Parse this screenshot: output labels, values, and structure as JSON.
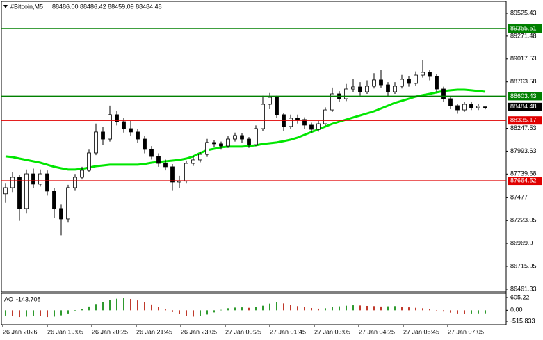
{
  "chart_data": {
    "type": "candlestick",
    "symbol": "#Bitcoin,M5",
    "header_ohlc": "88486.00 88486.42 88459.09 88484.48",
    "up_color": "#ffffff",
    "down_color": "#000000",
    "open": [
      87520,
      87588,
      87704,
      87357,
      87742,
      87627,
      87742,
      87550,
      87357,
      87241,
      87588,
      87704,
      87781,
      87974,
      88206,
      88128,
      88399,
      88321,
      88244,
      88206,
      88128,
      88013,
      87935,
      87858,
      87820,
      87650,
      87660,
      87858,
      87897,
      87958,
      88090,
      88075,
      88051,
      88128,
      88167,
      88128,
      88066,
      88244,
      88514,
      88591,
      88399,
      88268,
      88360,
      88345,
      88283,
      88236,
      88298,
      88452,
      88630,
      88576,
      88684,
      88707,
      88653,
      88715,
      88785,
      88730,
      88653,
      88715,
      88792,
      88746,
      88838,
      88869,
      88823,
      88684,
      88576,
      88499,
      88452,
      88514,
      88476,
      88486
    ],
    "high": [
      87640,
      87760,
      87730,
      87790,
      87800,
      87790,
      87780,
      87580,
      87400,
      87620,
      87740,
      87820,
      88010,
      88300,
      88260,
      88500,
      88440,
      88360,
      88330,
      88240,
      88160,
      88050,
      87970,
      87900,
      87850,
      87720,
      87890,
      87940,
      87990,
      88130,
      88120,
      88100,
      88160,
      88200,
      88190,
      88150,
      88280,
      88610,
      88640,
      88610,
      88420,
      88400,
      88400,
      88370,
      88310,
      88330,
      88480,
      88700,
      88660,
      88740,
      88800,
      88760,
      88780,
      88860,
      88900,
      88760,
      88760,
      88840,
      88830,
      88880,
      89000,
      88900,
      88850,
      88710,
      88600,
      88520,
      88540,
      88540,
      88520,
      88486.42
    ],
    "low": [
      87420,
      87540,
      87220,
      87300,
      87580,
      87600,
      87500,
      87250,
      87060,
      87200,
      87560,
      87680,
      87760,
      87950,
      88060,
      88100,
      88280,
      88200,
      88160,
      88090,
      87970,
      87900,
      87820,
      87780,
      87560,
      87580,
      87640,
      87830,
      87870,
      87930,
      88040,
      88010,
      88030,
      88100,
      88090,
      88030,
      88050,
      88220,
      88460,
      88360,
      88220,
      88240,
      88300,
      88240,
      88200,
      88210,
      88280,
      88430,
      88540,
      88550,
      88650,
      88610,
      88630,
      88690,
      88700,
      88600,
      88630,
      88690,
      88710,
      88720,
      88810,
      88780,
      88650,
      88540,
      88460,
      88410,
      88430,
      88450,
      88450,
      88459.09
    ],
    "close": [
      87588,
      87704,
      87357,
      87742,
      87627,
      87742,
      87550,
      87357,
      87241,
      87588,
      87704,
      87781,
      87974,
      88206,
      88128,
      88399,
      88321,
      88244,
      88206,
      88128,
      88013,
      87935,
      87858,
      87820,
      87650,
      87660,
      87858,
      87897,
      87958,
      88090,
      88075,
      88051,
      88128,
      88167,
      88128,
      88066,
      88244,
      88514,
      88591,
      88399,
      88268,
      88360,
      88345,
      88283,
      88236,
      88298,
      88452,
      88630,
      88576,
      88684,
      88707,
      88653,
      88715,
      88785,
      88730,
      88653,
      88715,
      88792,
      88746,
      88838,
      88869,
      88823,
      88684,
      88576,
      88499,
      88452,
      88514,
      88476,
      88492,
      88484.48
    ],
    "ma": {
      "color": "#00e600",
      "values": [
        87936,
        87928,
        87912,
        87897,
        87881,
        87866,
        87843,
        87820,
        87804,
        87789,
        87789,
        87797,
        87812,
        87827,
        87835,
        87843,
        87843,
        87843,
        87843,
        87843,
        87851,
        87866,
        87874,
        87881,
        87889,
        87897,
        87912,
        87936,
        87974,
        88005,
        88020,
        88036,
        88044,
        88044,
        88044,
        88051,
        88059,
        88074,
        88082,
        88090,
        88105,
        88121,
        88144,
        88175,
        88206,
        88236,
        88267,
        88298,
        88321,
        88345,
        88368,
        88391,
        88414,
        88437,
        88468,
        88499,
        88530,
        88553,
        88576,
        88599,
        88615,
        88630,
        88646,
        88661,
        88669,
        88676,
        88676,
        88669,
        88661,
        88653
      ]
    },
    "ylim": [
      86430,
      89672
    ],
    "yticks": [
      89525.43,
      89271.48,
      89017.53,
      88763.58,
      88247.53,
      87993.63,
      87739.68,
      87477,
      {
        "value": 87223.05,
        "label": "87223.05"
      },
      86969.9,
      86715.95,
      86461.33
    ],
    "levels": [
      {
        "value": 89355.51,
        "color": "#008000"
      },
      {
        "value": 88603.43,
        "color": "#008000"
      },
      {
        "value": 88335.17,
        "color": "#e00000"
      },
      {
        "value": 87664.52,
        "color": "#e00000"
      }
    ],
    "time_labels": [
      "26 Jan 2026",
      "26 Jan 19:05",
      "26 Jan 20:25",
      "26 Jan 21:45",
      "26 Jan 23:05",
      "27 Jan 00:25",
      "27 Jan 01:45",
      "27 Jan 03:05",
      "27 Jan 04:25",
      "27 Jan 05:45",
      "27 Jan 07:05"
    ],
    "indicator": {
      "name": "AO",
      "up_color": "#2e9a2e",
      "down_color": "#c0392b",
      "ylim": [
        -681,
        803
      ],
      "yticks": [
        605.22,
        {
          "value": 0,
          "label": "0.00"
        },
        -515.833
      ],
      "values": [
        -250,
        -280,
        -320,
        -300,
        -260,
        -280,
        -320,
        -300,
        -240,
        -150,
        -40,
        60,
        180,
        300,
        400,
        480,
        550,
        580,
        540,
        470,
        380,
        280,
        160,
        40,
        -80,
        -180,
        -260,
        -300,
        -280,
        -200,
        -100,
        20,
        100,
        130,
        140,
        120,
        150,
        220,
        320,
        380,
        330,
        260,
        200,
        150,
        110,
        80,
        100,
        150,
        190,
        220,
        240,
        230,
        210,
        200,
        180,
        190,
        200,
        170,
        140,
        120,
        100,
        60,
        0,
        -60,
        -110,
        -150,
        -160,
        -150,
        -145,
        -143.708
      ]
    }
  }
}
